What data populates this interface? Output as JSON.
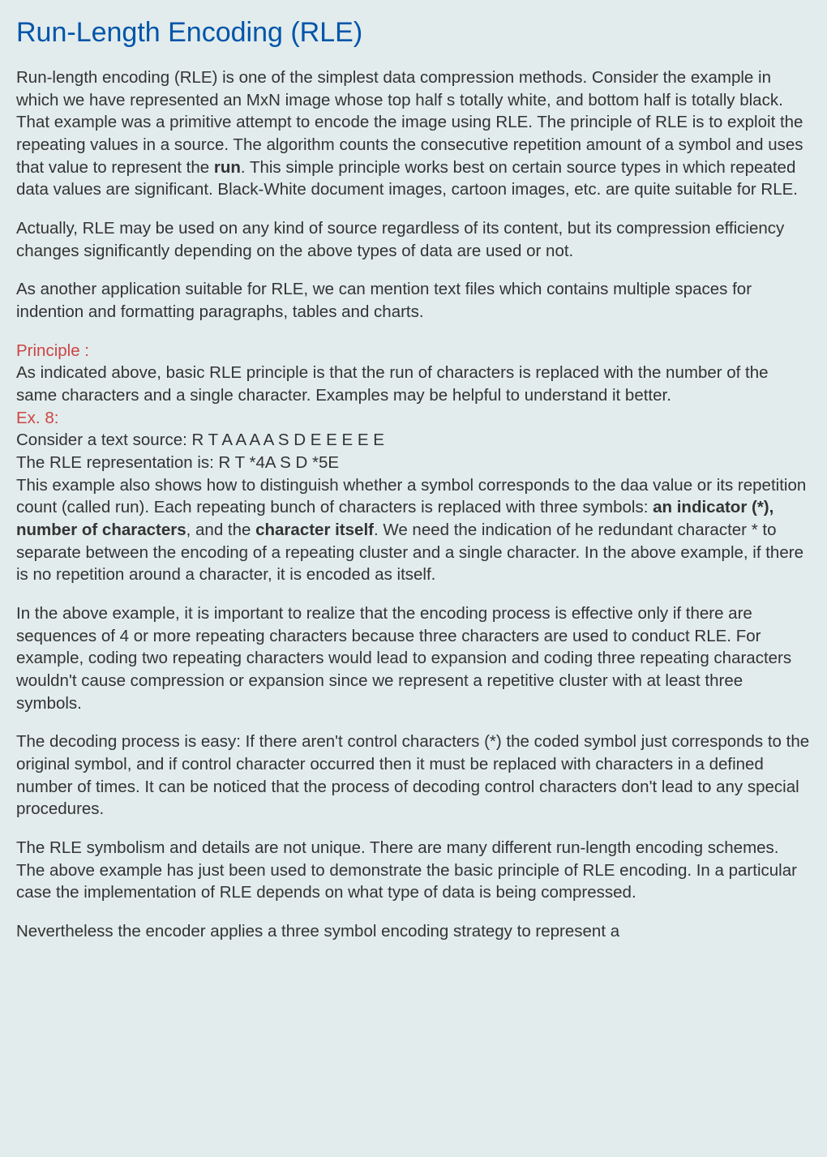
{
  "title": "Run-Length Encoding (RLE)",
  "para1_a": "Run-length encoding (RLE) is one of the simplest data compression methods. Consider the example in which we have represented an MxN image whose top half s totally white, and bottom half is totally black. That example was a primitive attempt to encode the image using RLE. The principle of RLE is to exploit the repeating values in a source. The algorithm counts the consecutive repetition amount of a symbol and uses that value to represent the ",
  "para1_bold": "run",
  "para1_b": ". This simple principle works best on certain source types in which repeated data values are significant. Black-White document images, cartoon images, etc. are quite suitable for RLE.",
  "para2": "Actually, RLE may be used on any kind of source regardless of its content, but its compression efficiency changes significantly depending on the above types of data are used or not.",
  "para3": "As another application suitable for RLE, we can mention text files which contains multiple spaces for indention and formatting paragraphs, tables and charts.",
  "principle_label": "Principle :",
  "principle_text": "As indicated above, basic RLE principle is that the run of characters is replaced with the number of the same characters and a single character. Examples may be helpful to understand it better.",
  "ex_label": "Ex. 8:",
  "ex_line1": "Consider a text source: R T A A A A S D E E E E E",
  "ex_line2": "The RLE representation is: R T *4A S D *5E",
  "ex_text_a": "This example also shows how to distinguish whether a symbol corresponds to the daa value or its repetition count (called run). Each repeating bunch of characters is replaced with three symbols: ",
  "ex_bold1": "an indicator (*), number of characters",
  "ex_text_b": ", and the ",
  "ex_bold2": "character itself",
  "ex_text_c": ". We need the indication of he redundant character * to separate between the encoding of a repeating cluster and a single character. In the above example, if there is no repetition around a character, it is encoded as itself.",
  "para4": "In the above example, it is important to realize that the encoding process is effective only if there are sequences of 4 or more repeating characters because three characters are used to conduct RLE. For example, coding two repeating characters would lead to expansion and coding three repeating characters wouldn't cause compression or expansion since we represent a repetitive cluster with at least three symbols.",
  "para5": "The decoding process is easy: If there aren't control characters (*) the coded symbol just corresponds to the original symbol, and if control character occurred then it must be replaced with characters in a defined number of times. It can be noticed that the process of decoding control characters don't lead to any special procedures.",
  "para6": "The RLE symbolism and details are not unique. There are many different run-length encoding schemes. The above example has just been used to demonstrate the basic principle of RLE encoding. In a particular case the implementation of RLE depends on what type of data is being compressed.",
  "para7": "Nevertheless the encoder applies a three symbol encoding strategy to represent a"
}
